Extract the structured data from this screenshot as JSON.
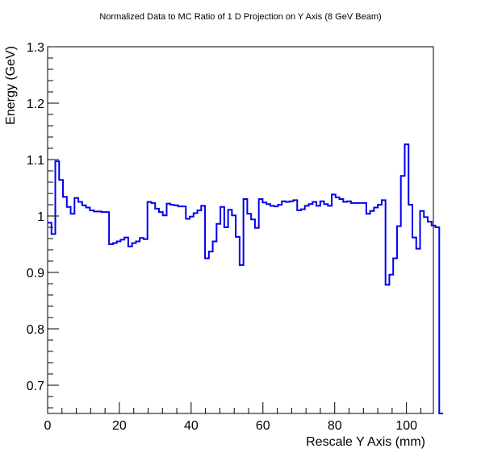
{
  "chart_data": {
    "type": "line",
    "title": "Normalized Data to MC Ratio of 1 D Projection on Y Axis (8 GeV Beam)",
    "xlabel": "Rescale Y Axis (mm)",
    "ylabel": "Energy (GeV)",
    "xlim": [
      0,
      107.5
    ],
    "ylim": [
      0.65,
      1.3
    ],
    "x_ticks": [
      0,
      20,
      40,
      60,
      80,
      100
    ],
    "y_ticks": [
      0.7,
      0.8,
      0.9,
      1.0,
      1.1,
      1.2,
      1.3
    ],
    "y_tick_labels": [
      "0.7",
      "0.8",
      "0.9",
      "1",
      "1.1",
      "1.2",
      "1.3"
    ],
    "histogram_style": "step",
    "line_color": "#0000ee",
    "grid": false,
    "bin_width": 1.07,
    "series": [
      {
        "values": [
          0.988,
          0.968,
          1.097,
          1.064,
          1.034,
          1.016,
          1.004,
          1.032,
          1.025,
          1.019,
          1.015,
          1.01,
          1.008,
          1.008,
          1.007,
          1.007,
          0.95,
          0.952,
          0.955,
          0.958,
          0.962,
          0.946,
          0.952,
          0.955,
          0.961,
          0.959,
          1.025,
          1.023,
          1.013,
          1.007,
          1.001,
          1.022,
          1.02,
          1.019,
          1.017,
          1.017,
          0.995,
          0.999,
          1.005,
          1.01,
          1.018,
          0.925,
          0.937,
          0.955,
          0.986,
          1.016,
          0.98,
          1.011,
          1.001,
          0.963,
          0.913,
          1.03,
          1.004,
          0.994,
          0.979,
          1.03,
          1.024,
          1.021,
          1.018,
          1.017,
          1.02,
          1.026,
          1.025,
          1.026,
          1.028,
          1.01,
          1.012,
          1.018,
          1.021,
          1.025,
          1.018,
          1.026,
          1.021,
          1.018,
          1.038,
          1.033,
          1.03,
          1.025,
          1.026,
          1.023,
          1.023,
          1.023,
          1.023,
          1.004,
          1.009,
          1.015,
          1.02,
          1.028,
          0.878,
          0.896,
          0.925,
          0.982,
          1.071,
          1.127,
          1.02,
          0.962,
          0.942,
          1.009,
          0.998,
          0.99,
          0.983,
          0.98,
          0.65
        ]
      }
    ]
  }
}
